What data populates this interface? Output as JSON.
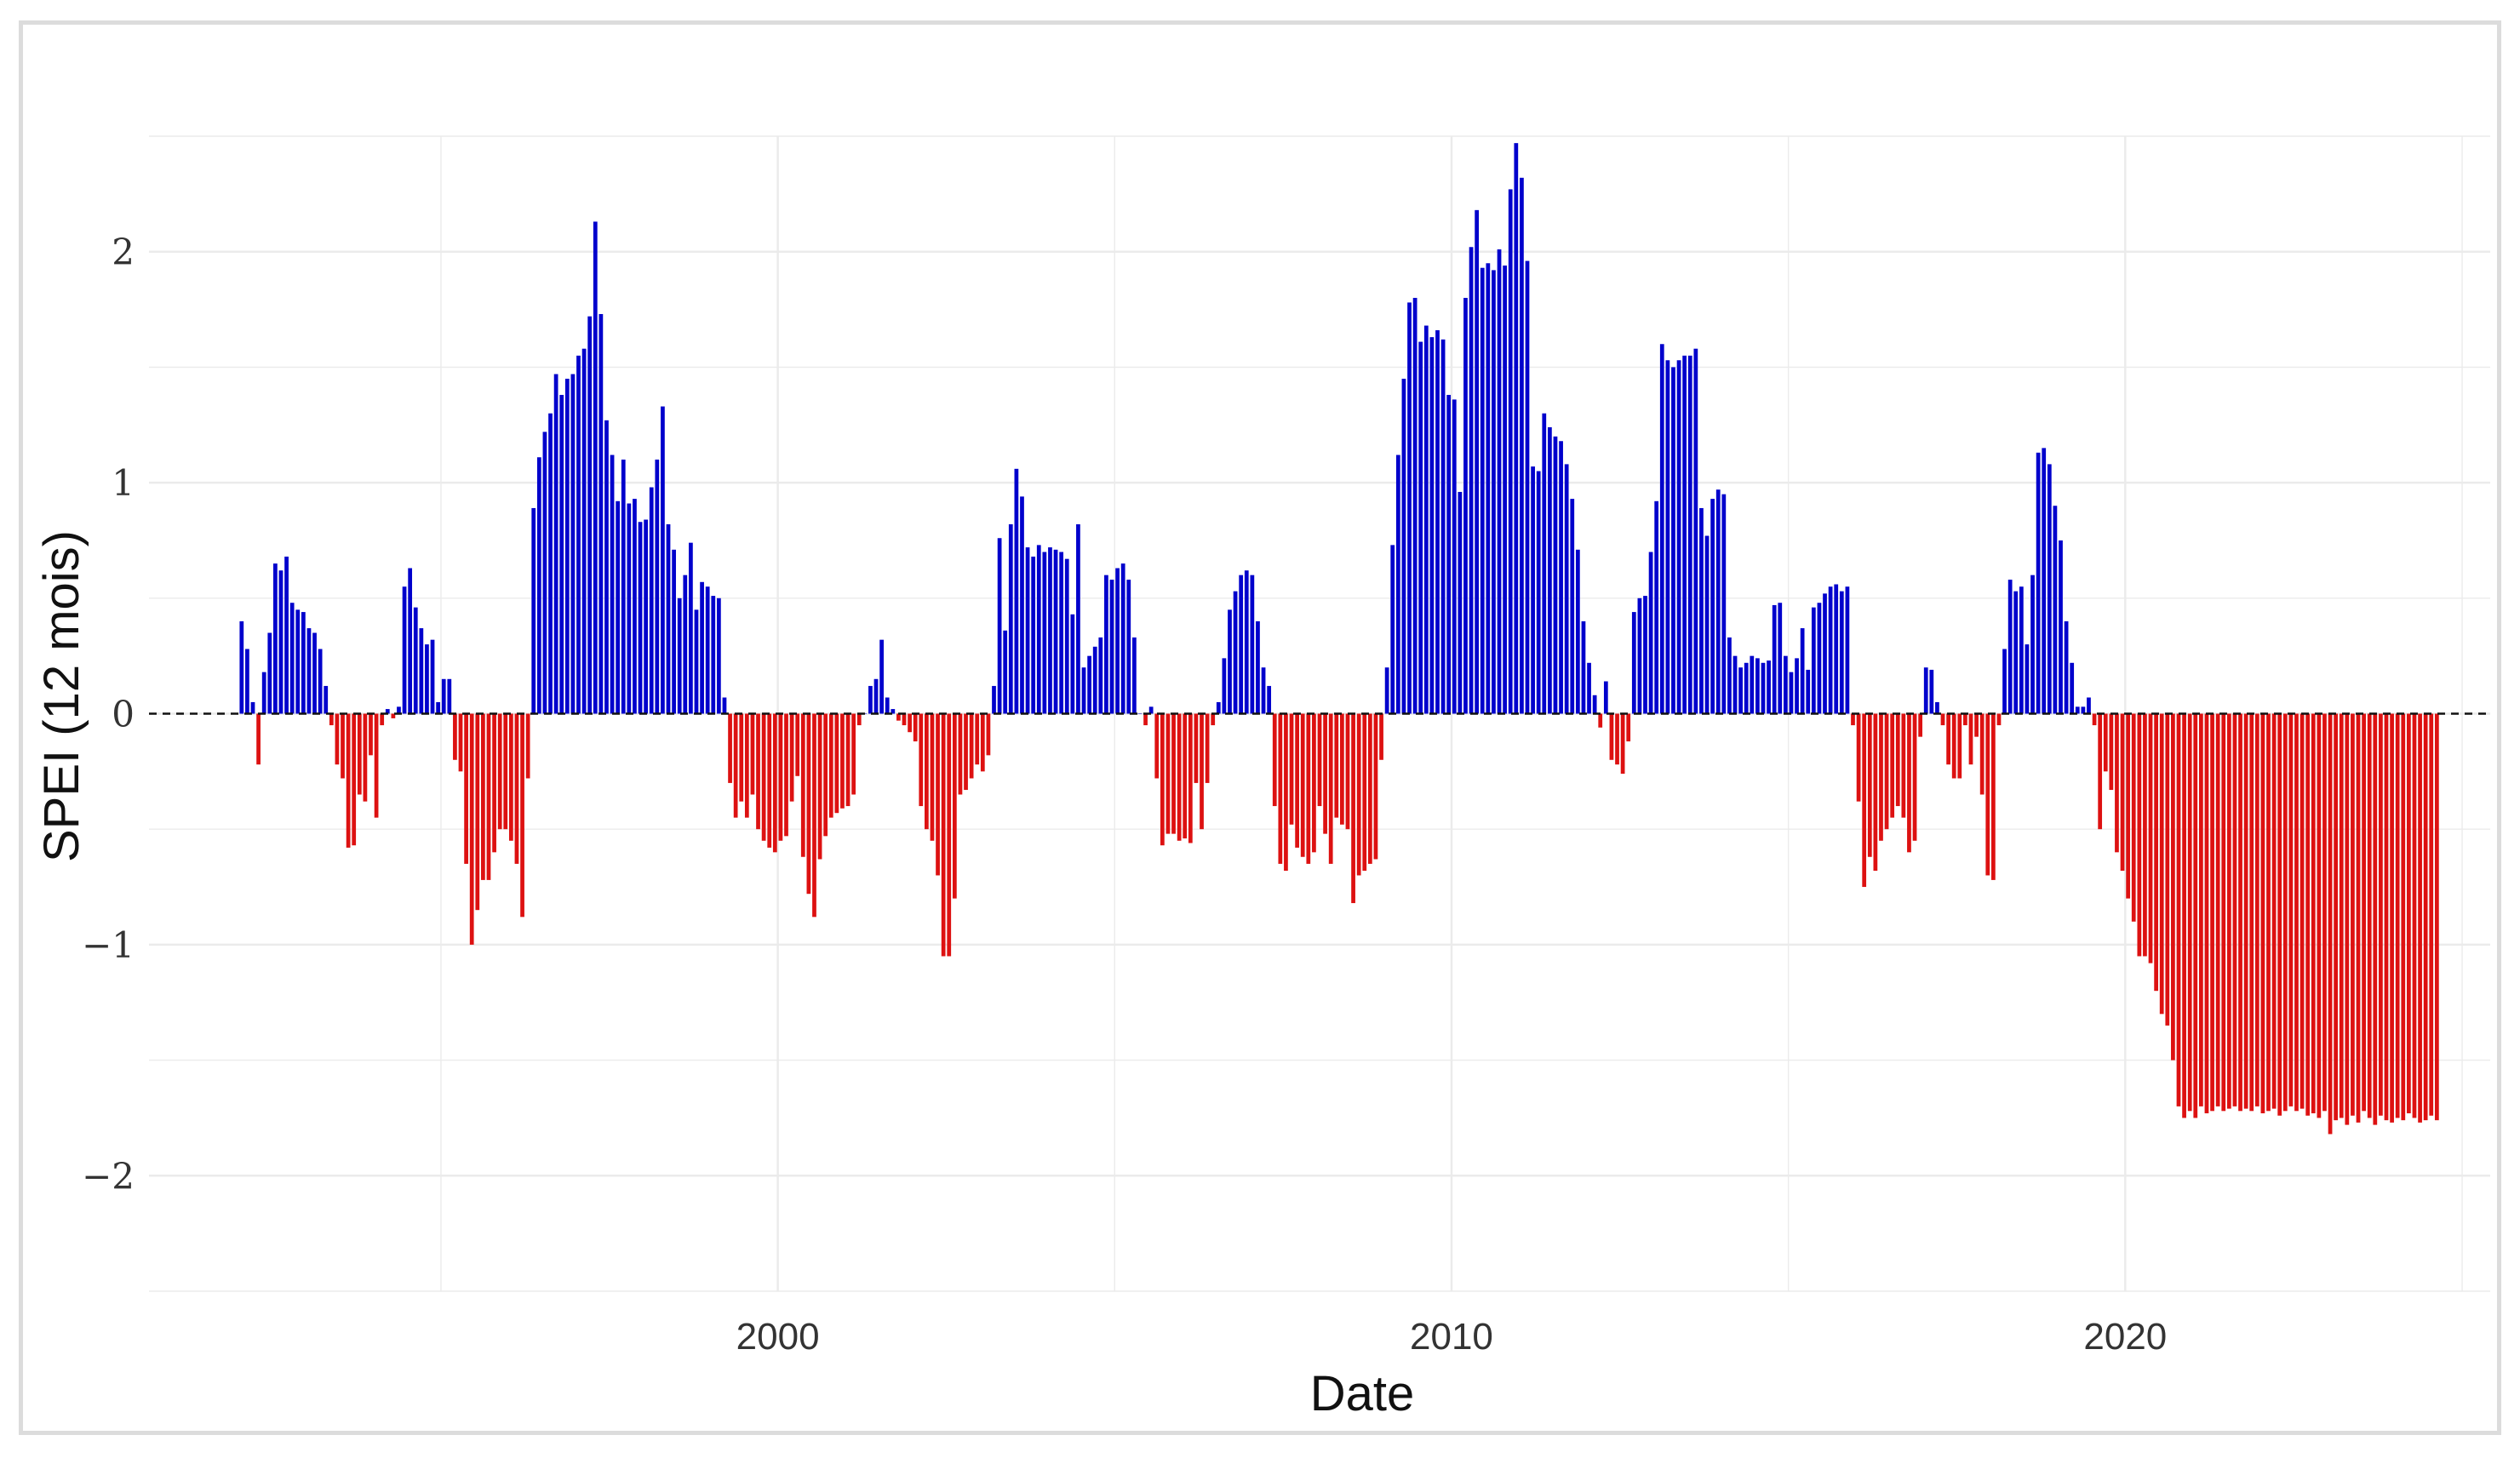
{
  "chart_data": {
    "type": "bar",
    "title": "",
    "xlabel": "Date",
    "ylabel": "SPEI (12 mois)",
    "ylim": [
      -2.5,
      2.5
    ],
    "xlim": [
      "1990-09",
      "2025-06"
    ],
    "y_ticks": [
      {
        "value": -2,
        "label": "−2"
      },
      {
        "value": -1,
        "label": "−1"
      },
      {
        "value": 0,
        "label": "0"
      },
      {
        "value": 1,
        "label": "1"
      },
      {
        "value": 2,
        "label": "2"
      }
    ],
    "x_ticks": [
      {
        "value": "2000-01",
        "label": "2000"
      },
      {
        "value": "2010-01",
        "label": "2010"
      },
      {
        "value": "2020-01",
        "label": "2020"
      }
    ],
    "grid": true,
    "zero_line": "dashed",
    "colors": {
      "positive": "#0000cc",
      "negative": "#dd1111",
      "grid": "#ebebeb"
    },
    "start_month": "1992-01",
    "values": [
      0.4,
      0.28,
      0.05,
      -0.22,
      0.18,
      0.35,
      0.65,
      0.62,
      0.68,
      0.48,
      0.45,
      0.44,
      0.37,
      0.35,
      0.28,
      0.12,
      -0.05,
      -0.22,
      -0.28,
      -0.58,
      -0.57,
      -0.35,
      -0.38,
      -0.18,
      -0.45,
      -0.05,
      0.02,
      -0.02,
      0.03,
      0.55,
      0.63,
      0.46,
      0.37,
      0.3,
      0.32,
      0.05,
      0.15,
      0.15,
      -0.2,
      -0.25,
      -0.65,
      -1.0,
      -0.85,
      -0.72,
      -0.72,
      -0.6,
      -0.5,
      -0.5,
      -0.55,
      -0.65,
      -0.88,
      -0.28,
      0.89,
      1.11,
      1.22,
      1.3,
      1.47,
      1.38,
      1.45,
      1.47,
      1.55,
      1.58,
      1.72,
      2.13,
      1.73,
      1.27,
      1.12,
      0.92,
      1.1,
      0.91,
      0.93,
      0.83,
      0.84,
      0.98,
      1.1,
      1.33,
      0.82,
      0.71,
      0.5,
      0.6,
      0.74,
      0.45,
      0.57,
      0.55,
      0.51,
      0.5,
      0.07,
      -0.3,
      -0.45,
      -0.38,
      -0.45,
      -0.35,
      -0.5,
      -0.55,
      -0.58,
      -0.6,
      -0.55,
      -0.53,
      -0.38,
      -0.27,
      -0.62,
      -0.78,
      -0.88,
      -0.63,
      -0.53,
      -0.45,
      -0.43,
      -0.41,
      -0.4,
      -0.35,
      -0.05,
      0.0,
      0.12,
      0.15,
      0.32,
      0.07,
      0.02,
      -0.03,
      -0.05,
      -0.08,
      -0.12,
      -0.4,
      -0.5,
      -0.55,
      -0.7,
      -1.05,
      -1.05,
      -0.8,
      -0.35,
      -0.33,
      -0.28,
      -0.22,
      -0.25,
      -0.18,
      0.12,
      0.76,
      0.36,
      0.82,
      1.06,
      0.94,
      0.72,
      0.68,
      0.73,
      0.7,
      0.72,
      0.71,
      0.7,
      0.67,
      0.43,
      0.82,
      0.2,
      0.25,
      0.29,
      0.33,
      0.6,
      0.58,
      0.63,
      0.65,
      0.58,
      0.33,
      0.0,
      -0.05,
      0.03,
      -0.28,
      -0.57,
      -0.52,
      -0.52,
      -0.55,
      -0.54,
      -0.56,
      -0.3,
      -0.5,
      -0.3,
      -0.05,
      0.05,
      0.24,
      0.45,
      0.53,
      0.6,
      0.62,
      0.6,
      0.4,
      0.2,
      0.12,
      -0.4,
      -0.65,
      -0.68,
      -0.48,
      -0.58,
      -0.62,
      -0.65,
      -0.6,
      -0.4,
      -0.52,
      -0.65,
      -0.45,
      -0.48,
      -0.5,
      -0.82,
      -0.7,
      -0.68,
      -0.65,
      -0.63,
      -0.2,
      0.2,
      0.73,
      1.12,
      1.45,
      1.78,
      1.8,
      1.61,
      1.68,
      1.63,
      1.66,
      1.62,
      1.38,
      1.36,
      0.96,
      1.8,
      2.02,
      2.18,
      1.93,
      1.95,
      1.92,
      2.01,
      1.94,
      2.27,
      2.47,
      2.32,
      1.96,
      1.07,
      1.05,
      1.3,
      1.24,
      1.2,
      1.18,
      1.08,
      0.93,
      0.71,
      0.4,
      0.22,
      0.08,
      -0.06,
      0.14,
      -0.2,
      -0.22,
      -0.26,
      -0.12,
      0.44,
      0.5,
      0.51,
      0.7,
      0.92,
      1.6,
      1.53,
      1.5,
      1.53,
      1.55,
      1.55,
      1.58,
      0.89,
      0.77,
      0.93,
      0.97,
      0.95,
      0.33,
      0.25,
      0.2,
      0.22,
      0.25,
      0.24,
      0.22,
      0.23,
      0.47,
      0.48,
      0.25,
      0.18,
      0.24,
      0.37,
      0.19,
      0.46,
      0.48,
      0.52,
      0.55,
      0.56,
      0.53,
      0.55,
      -0.05,
      -0.38,
      -0.75,
      -0.62,
      -0.68,
      -0.55,
      -0.5,
      -0.45,
      -0.4,
      -0.45,
      -0.6,
      -0.55,
      -0.1,
      0.2,
      0.19,
      0.05,
      -0.05,
      -0.22,
      -0.28,
      -0.28,
      -0.05,
      -0.22,
      -0.1,
      -0.35,
      -0.7,
      -0.72,
      -0.05,
      0.28,
      0.58,
      0.53,
      0.55,
      0.3,
      0.6,
      1.13,
      1.15,
      1.08,
      0.9,
      0.75,
      0.4,
      0.22,
      0.03,
      0.03,
      0.07,
      -0.05,
      -0.5,
      -0.25,
      -0.33,
      -0.6,
      -0.68,
      -0.8,
      -0.9,
      -1.05,
      -1.05,
      -1.08,
      -1.2,
      -1.3,
      -1.35,
      -1.5,
      -1.7,
      -1.75,
      -1.72,
      -1.75,
      -1.7,
      -1.73,
      -1.72,
      -1.7,
      -1.72,
      -1.71,
      -1.7,
      -1.72,
      -1.71,
      -1.72,
      -1.7,
      -1.73,
      -1.72,
      -1.71,
      -1.74,
      -1.72,
      -1.7,
      -1.72,
      -1.71,
      -1.74,
      -1.73,
      -1.75,
      -1.72,
      -1.82,
      -1.76,
      -1.75,
      -1.78,
      -1.74,
      -1.77,
      -1.72,
      -1.75,
      -1.78,
      -1.74,
      -1.76,
      -1.77,
      -1.75,
      -1.76,
      -1.73,
      -1.75,
      -1.77,
      -1.76,
      -1.74,
      -1.76
    ]
  }
}
